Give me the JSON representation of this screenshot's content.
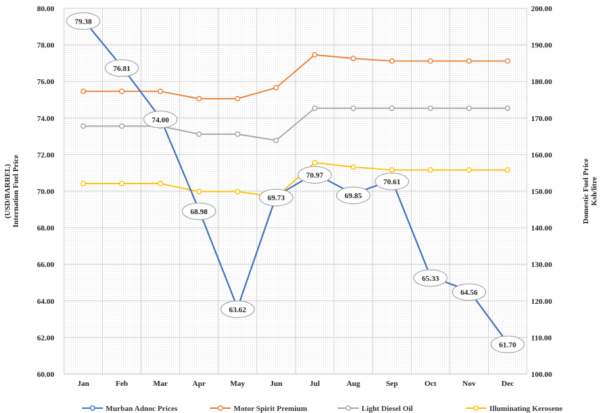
{
  "chart_data": {
    "type": "line",
    "categories": [
      "Jan",
      "Feb",
      "Mar",
      "Apr",
      "May",
      "Jun",
      "Jul",
      "Aug",
      "Sep",
      "Oct",
      "Nov",
      "Dec"
    ],
    "left_axis": {
      "title_lines": [
        "(USD/BARREL)",
        "Internation Fuel Price"
      ],
      "ylim": [
        60,
        80
      ],
      "ticks": [
        "60.00",
        "62.00",
        "64.00",
        "66.00",
        "68.00",
        "70.00",
        "72.00",
        "74.00",
        "76.00",
        "78.00",
        "80.00"
      ]
    },
    "right_axis": {
      "title_lines": [
        "Domestic Fuel Price",
        "Ksh/litre"
      ],
      "ylim": [
        100,
        200
      ],
      "ticks": [
        "100.00",
        "110.00",
        "120.00",
        "130.00",
        "140.00",
        "150.00",
        "160.00",
        "170.00",
        "180.00",
        "190.00",
        "200.00"
      ]
    },
    "grid": true,
    "legend_position": "bottom",
    "series": [
      {
        "name": "Murban Adnoc Prices",
        "axis": "left",
        "color": "#4472C4",
        "marker": "none",
        "values": [
          79.38,
          76.81,
          74.0,
          68.98,
          63.62,
          69.73,
          70.97,
          69.85,
          70.61,
          65.33,
          64.56,
          61.7
        ],
        "data_labels": [
          "79.38",
          "76.81",
          "74.00",
          "68.98",
          "63.62",
          "69.73",
          "70.97",
          "69.85",
          "70.61",
          "65.33",
          "64.56",
          "61.70"
        ]
      },
      {
        "name": "Motor Spirit Premium",
        "axis": "right",
        "color": "#ED7D31",
        "marker": "circle",
        "values": [
          177.3,
          177.3,
          177.3,
          175.3,
          175.3,
          178.3,
          187.3,
          186.3,
          185.6,
          185.6,
          185.6,
          185.6
        ]
      },
      {
        "name": "Light Diesel Oil",
        "axis": "right",
        "color": "#A5A5A5",
        "marker": "circle",
        "values": [
          167.8,
          167.8,
          167.8,
          165.6,
          165.6,
          163.9,
          172.7,
          172.7,
          172.7,
          172.7,
          172.7,
          172.7
        ]
      },
      {
        "name": "Illuminating Kerosene",
        "axis": "right",
        "color": "#FFC000",
        "marker": "circle",
        "values": [
          152.1,
          152.1,
          152.1,
          149.9,
          149.9,
          148.4,
          157.8,
          156.6,
          155.8,
          155.8,
          155.8,
          155.8
        ]
      }
    ]
  }
}
